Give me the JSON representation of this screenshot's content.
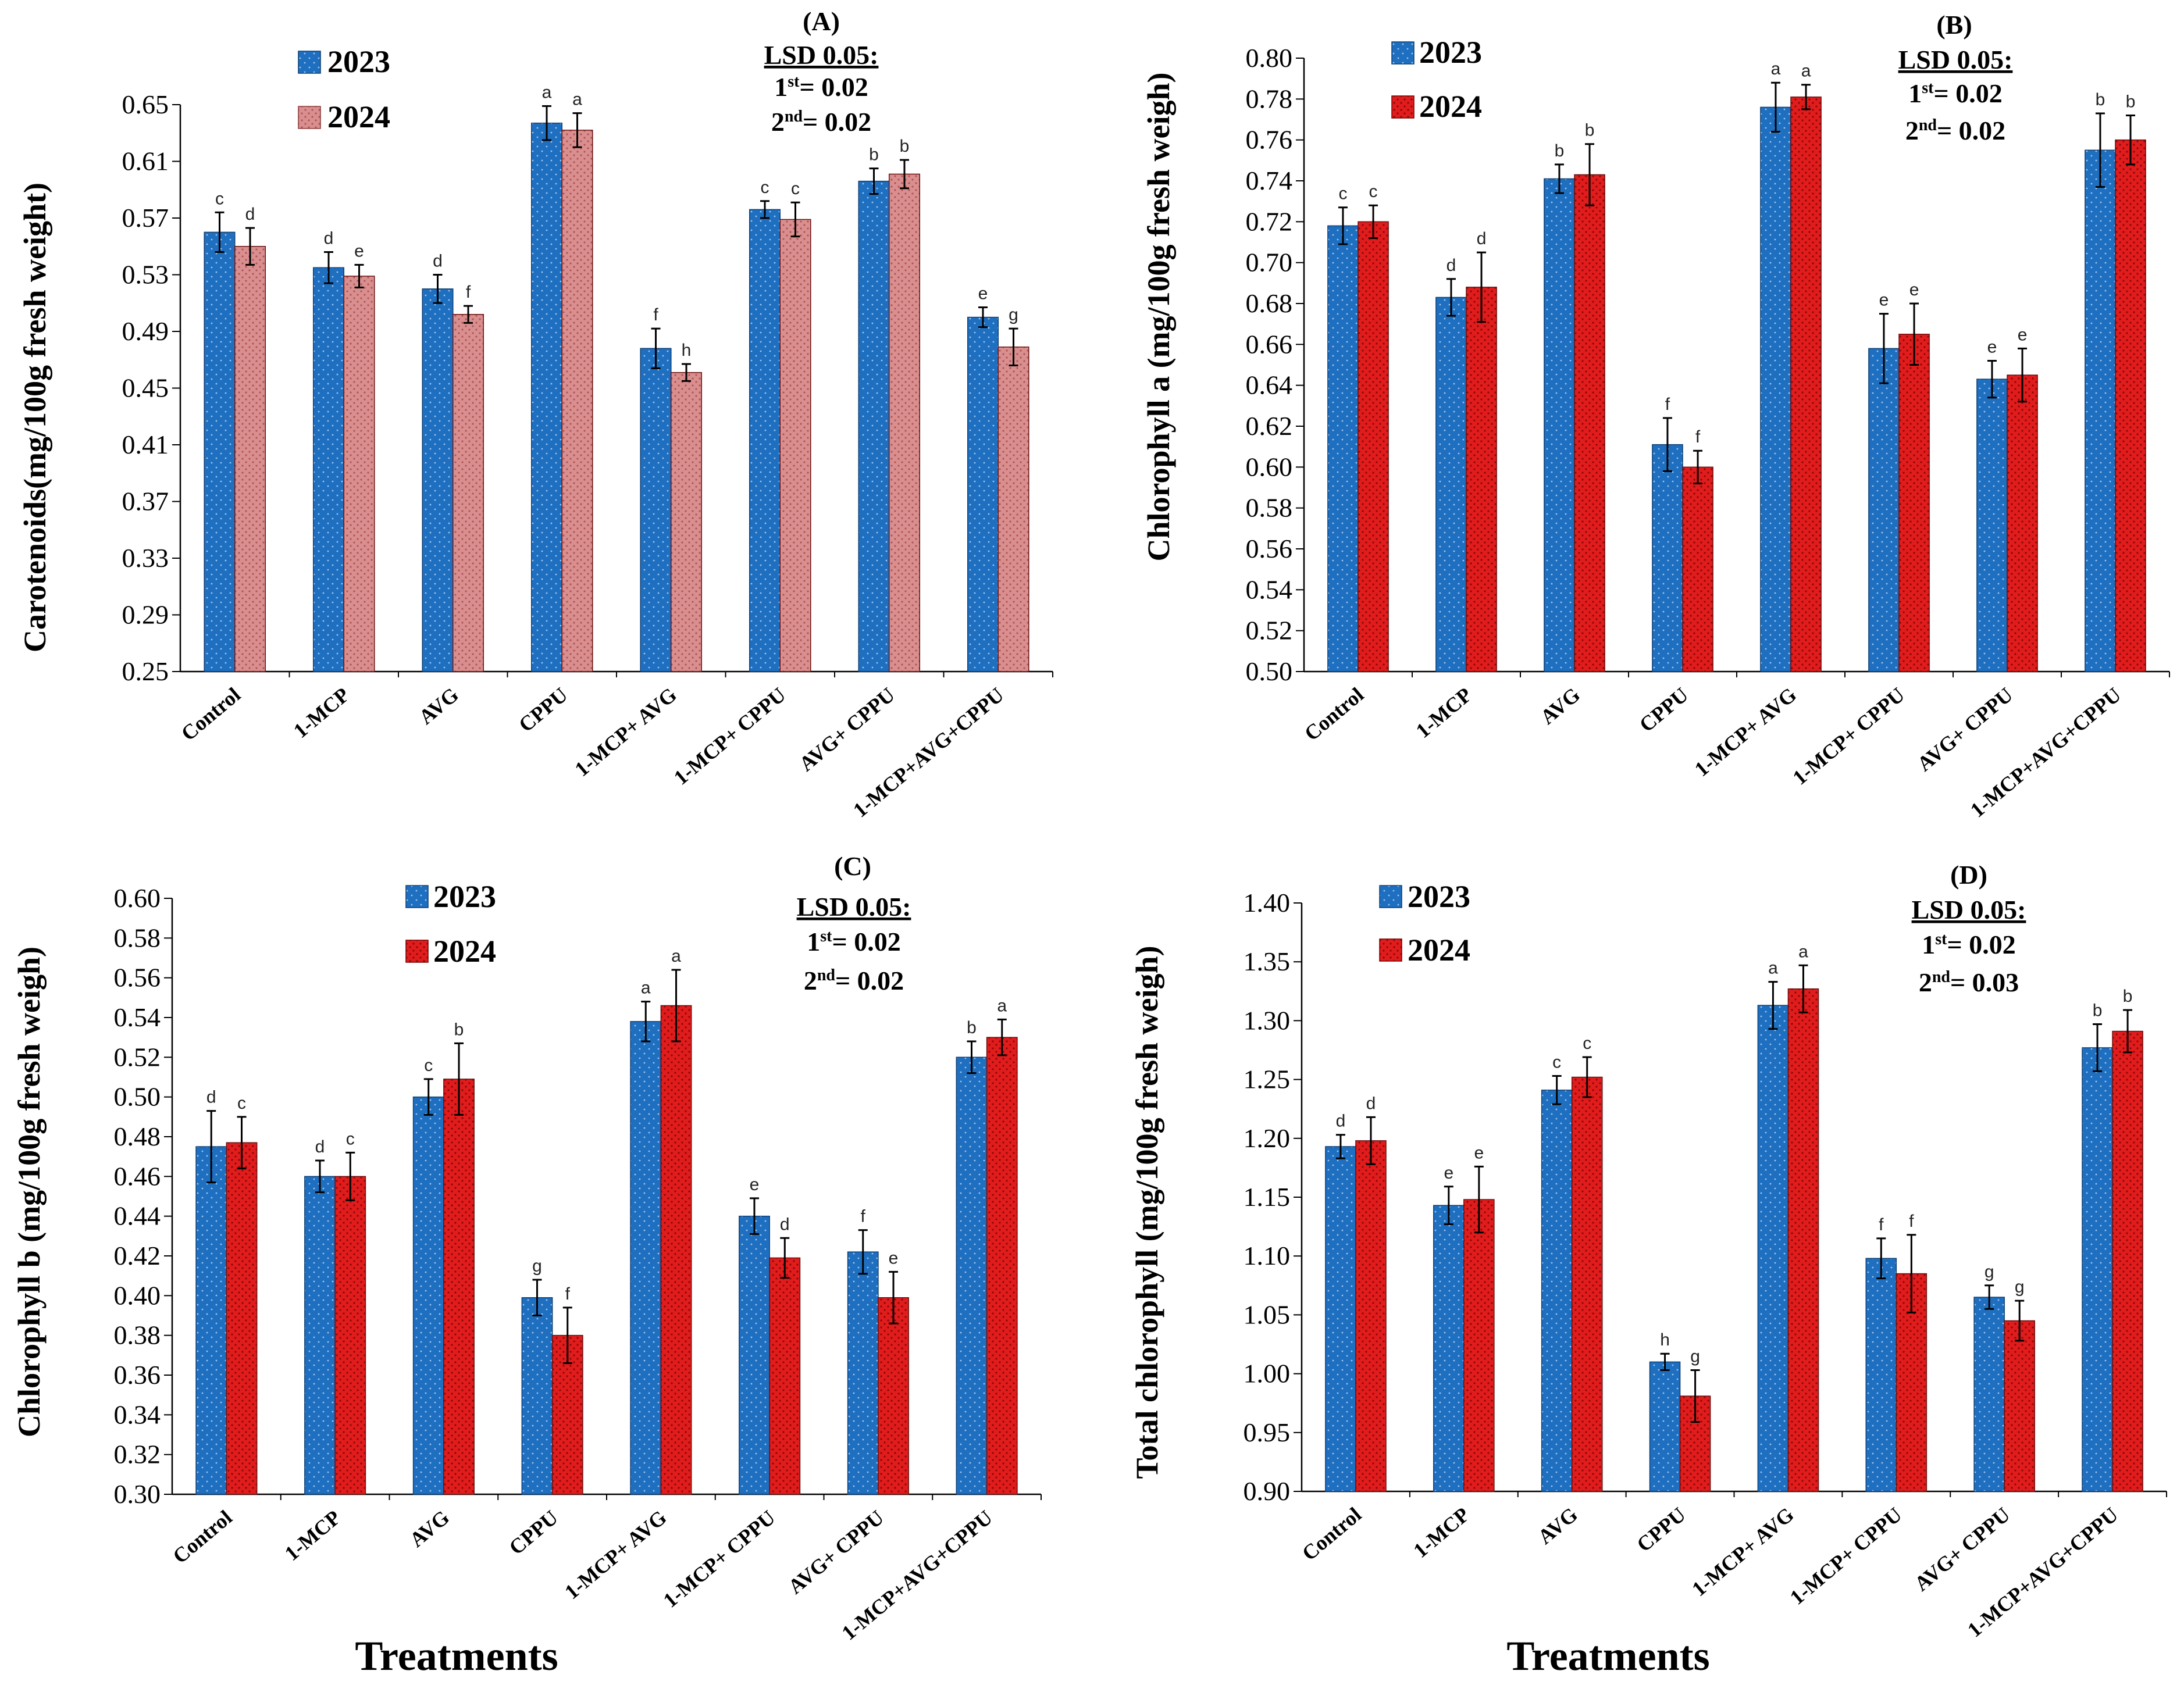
{
  "x_title": "Treatments",
  "colors": {
    "2023": "#1f6fc0",
    "2023_dot": "#9ec4ee",
    "2024_dots": "#c06a6a",
    "2024_red": "#e01c1c",
    "2024_red_dot": "#8a0808",
    "2024_salmon": "#d98f8f",
    "2024_salmon_dot": "#b05454"
  },
  "chart_data": [
    {
      "panel": "(A)",
      "type": "bar",
      "ylabel": "Carotenoids(mg/100g fresh weight)",
      "ylim": [
        0.25,
        0.65
      ],
      "yticks": [
        "0.25",
        "0.29",
        "0.33",
        "0.37",
        "0.41",
        "0.45",
        "0.49",
        "0.53",
        "0.57",
        "0.61",
        "0.65"
      ],
      "legend_position": "top-left",
      "lsd": {
        "title": "LSD 0.05:",
        "first": "= 0.02",
        "second": "= 0.02"
      },
      "categories": [
        "Control",
        "1-MCP",
        "AVG",
        "CPPU",
        "1-MCP+ AVG",
        "1-MCP+ CPPU",
        "AVG+ CPPU",
        "1-MCP+AVG+CPPU"
      ],
      "series": [
        {
          "name": "2023",
          "values": [
            0.56,
            0.535,
            0.52,
            0.637,
            0.478,
            0.576,
            0.596,
            0.5
          ],
          "errors": [
            0.014,
            0.011,
            0.01,
            0.012,
            0.014,
            0.006,
            0.009,
            0.007
          ],
          "letters": [
            "c",
            "d",
            "d",
            "a",
            "f",
            "c",
            "b",
            "e"
          ]
        },
        {
          "name": "2024",
          "values": [
            0.55,
            0.529,
            0.502,
            0.632,
            0.461,
            0.569,
            0.601,
            0.479
          ],
          "errors": [
            0.013,
            0.008,
            0.006,
            0.012,
            0.006,
            0.012,
            0.01,
            0.013
          ],
          "letters": [
            "d",
            "e",
            "f",
            "a",
            "h",
            "c",
            "b",
            "g"
          ]
        }
      ]
    },
    {
      "panel": "(B)",
      "type": "bar",
      "ylabel": "Chlorophyll a  (mg/100g fresh weigh)",
      "ylim": [
        0.5,
        0.8
      ],
      "yticks": [
        "0.50",
        "0.52",
        "0.54",
        "0.56",
        "0.58",
        "0.60",
        "0.62",
        "0.64",
        "0.66",
        "0.68",
        "0.70",
        "0.72",
        "0.74",
        "0.76",
        "0.78",
        "0.80"
      ],
      "legend_position": "top-left",
      "lsd": {
        "title": "LSD 0.05:",
        "first": "= 0.02",
        "second": "= 0.02"
      },
      "categories": [
        "Control",
        "1-MCP",
        "AVG",
        "CPPU",
        "1-MCP+ AVG",
        "1-MCP+ CPPU",
        "AVG+ CPPU",
        "1-MCP+AVG+CPPU"
      ],
      "series": [
        {
          "name": "2023",
          "values": [
            0.718,
            0.683,
            0.741,
            0.611,
            0.776,
            0.658,
            0.643,
            0.755
          ],
          "errors": [
            0.009,
            0.009,
            0.007,
            0.013,
            0.012,
            0.017,
            0.009,
            0.018
          ],
          "letters": [
            "c",
            "d",
            "b",
            "f",
            "a",
            "e",
            "e",
            "b"
          ]
        },
        {
          "name": "2024",
          "values": [
            0.72,
            0.688,
            0.743,
            0.6,
            0.781,
            0.665,
            0.645,
            0.76
          ],
          "errors": [
            0.008,
            0.017,
            0.015,
            0.008,
            0.006,
            0.015,
            0.013,
            0.012
          ],
          "letters": [
            "c",
            "d",
            "b",
            "f",
            "a",
            "e",
            "e",
            "b"
          ]
        }
      ]
    },
    {
      "panel": "(C)",
      "type": "bar",
      "ylabel": "Chlorophyll b  (mg/100g fresh weigh)",
      "ylim": [
        0.3,
        0.6
      ],
      "yticks": [
        "0.30",
        "0.32",
        "0.34",
        "0.36",
        "0.38",
        "0.40",
        "0.42",
        "0.44",
        "0.46",
        "0.48",
        "0.50",
        "0.52",
        "0.54",
        "0.56",
        "0.58",
        "0.60"
      ],
      "legend_position": "top-center",
      "lsd": {
        "title": "LSD 0.05:",
        "first": "= 0.02",
        "second": "= 0.02"
      },
      "categories": [
        "Control",
        "1-MCP",
        "AVG",
        "CPPU",
        "1-MCP+ AVG",
        "1-MCP+ CPPU",
        "AVG+ CPPU",
        "1-MCP+AVG+CPPU"
      ],
      "series": [
        {
          "name": "2023",
          "values": [
            0.475,
            0.46,
            0.5,
            0.399,
            0.538,
            0.44,
            0.422,
            0.52
          ],
          "errors": [
            0.018,
            0.008,
            0.009,
            0.009,
            0.01,
            0.009,
            0.011,
            0.008
          ],
          "letters": [
            "d",
            "d",
            "c",
            "g",
            "a",
            "e",
            "f",
            "b"
          ]
        },
        {
          "name": "2024",
          "values": [
            0.477,
            0.46,
            0.509,
            0.38,
            0.546,
            0.419,
            0.399,
            0.53
          ],
          "errors": [
            0.013,
            0.012,
            0.018,
            0.014,
            0.018,
            0.01,
            0.013,
            0.009
          ],
          "letters": [
            "c",
            "c",
            "b",
            "f",
            "a",
            "d",
            "e",
            "a"
          ]
        }
      ]
    },
    {
      "panel": "(D)",
      "type": "bar",
      "ylabel": "Total chlorophyll  (mg/100g fresh weigh)",
      "ylim": [
        0.9,
        1.4
      ],
      "yticks": [
        "0.90",
        "0.95",
        "1.00",
        "1.05",
        "1.10",
        "1.15",
        "1.20",
        "1.25",
        "1.30",
        "1.35",
        "1.40"
      ],
      "legend_position": "top-left",
      "lsd": {
        "title": "LSD 0.05:",
        "first": "= 0.02",
        "second": "= 0.03"
      },
      "categories": [
        "Control",
        "1-MCP",
        "AVG",
        "CPPU",
        "1-MCP+ AVG",
        "1-MCP+ CPPU",
        "AVG+ CPPU",
        "1-MCP+AVG+CPPU"
      ],
      "series": [
        {
          "name": "2023",
          "values": [
            1.193,
            1.143,
            1.241,
            1.01,
            1.313,
            1.098,
            1.065,
            1.277
          ],
          "errors": [
            0.01,
            0.016,
            0.012,
            0.007,
            0.02,
            0.017,
            0.01,
            0.02
          ],
          "letters": [
            "d",
            "e",
            "c",
            "h",
            "a",
            "f",
            "g",
            "b"
          ]
        },
        {
          "name": "2024",
          "values": [
            1.198,
            1.148,
            1.252,
            0.981,
            1.327,
            1.085,
            1.045,
            1.291
          ],
          "errors": [
            0.02,
            0.028,
            0.017,
            0.022,
            0.02,
            0.033,
            0.017,
            0.018
          ],
          "letters": [
            "d",
            "e",
            "c",
            "g",
            "a",
            "f",
            "g",
            "b"
          ]
        }
      ]
    }
  ]
}
